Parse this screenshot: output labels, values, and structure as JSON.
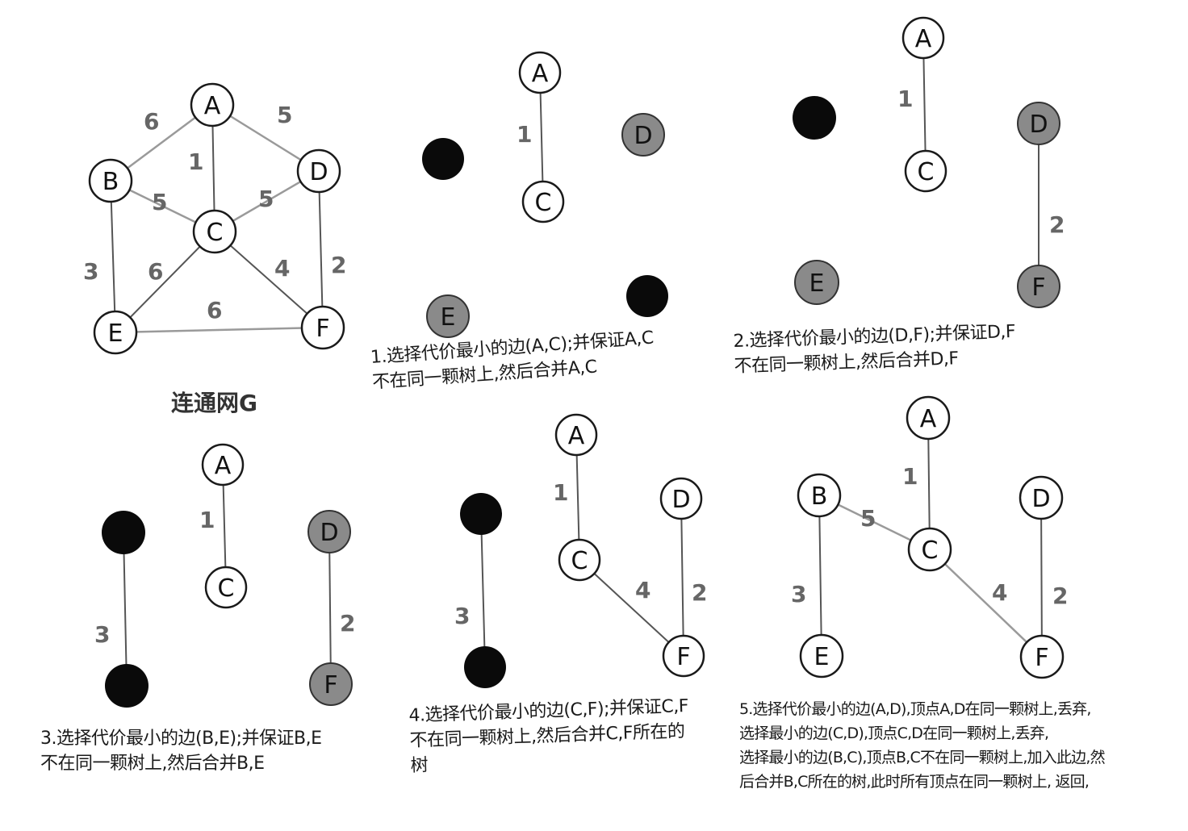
{
  "graph_title": "连通网G",
  "colors": {
    "node_fill": "#ffffff",
    "node_stroke": "#1a1a1a",
    "black_node": "#0a0a0a",
    "gray_node": "#8a8a8a",
    "edge": "#555555",
    "weight": "#666666"
  },
  "nodes": [
    "A",
    "B",
    "C",
    "D",
    "E",
    "F"
  ],
  "edges": [
    {
      "from": "A",
      "to": "B",
      "weight": "6"
    },
    {
      "from": "A",
      "to": "D",
      "weight": "5"
    },
    {
      "from": "A",
      "to": "C",
      "weight": "1"
    },
    {
      "from": "B",
      "to": "C",
      "weight": "5"
    },
    {
      "from": "D",
      "to": "C",
      "weight": "5"
    },
    {
      "from": "B",
      "to": "E",
      "weight": "3"
    },
    {
      "from": "C",
      "to": "E",
      "weight": "6"
    },
    {
      "from": "C",
      "to": "F",
      "weight": "4"
    },
    {
      "from": "D",
      "to": "F",
      "weight": "2"
    },
    {
      "from": "E",
      "to": "F",
      "weight": "6"
    }
  ],
  "steps": [
    {
      "caption": [
        "1.选择代价最小的边(A,C);并保证A,C",
        "不在同一颗树上,然后合并A,C"
      ]
    },
    {
      "caption": [
        "2.选择代价最小的边(D,F);并保证D,F",
        "不在同一颗树上,然后合并D,F"
      ]
    },
    {
      "caption": [
        "3.选择代价最小的边(B,E);并保证B,E",
        "不在同一颗树上,然后合并B,E"
      ]
    },
    {
      "caption": [
        "4.选择代价最小的边(C,F);并保证C,F",
        "不在同一颗树上,然后合并C,F所在的",
        "树"
      ]
    },
    {
      "caption": [
        "5.选择代价最小的边(A,D),顶点A,D在同一颗树上,丢弃,",
        "选择最小的边(C,D),顶点C,D在同一颗树上,丢弃,",
        "选择最小的边(B,C),顶点B,C不在同一颗树上,加入此边,然",
        "后合并B,C所在的树,此时所有顶点在同一颗树上, 返回,"
      ]
    }
  ]
}
